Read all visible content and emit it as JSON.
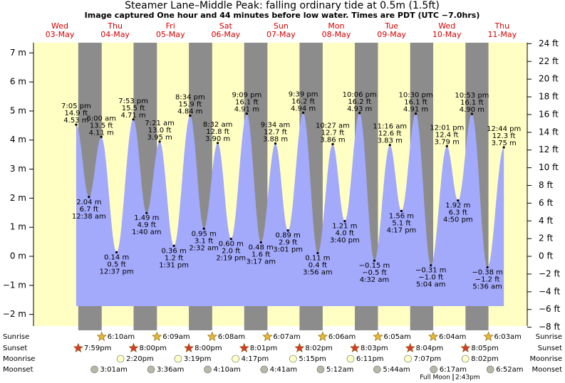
{
  "chart_data": {
    "type": "tide",
    "title": "Steamer Lane–Middle Peak: falling  ordinary tide at 0.5m (1.5ft)",
    "subtitle": "Image captured One hour and 44 minutes before low water. Times are PDT (UTC −7.0hrs)",
    "ylim": [
      -2.4,
      7.35
    ],
    "yticks": [
      {
        "value": -2,
        "label": "−2 m"
      },
      {
        "value": -1,
        "label": "−1 m"
      },
      {
        "value": 0,
        "label": "0 m"
      },
      {
        "value": 1,
        "label": "1 m"
      },
      {
        "value": 2,
        "label": "2 m"
      },
      {
        "value": 3,
        "label": "3 m"
      },
      {
        "value": 4,
        "label": "4 m"
      },
      {
        "value": 5,
        "label": "5 m"
      },
      {
        "value": 6,
        "label": "6 m"
      },
      {
        "value": 7,
        "label": "7 m"
      }
    ],
    "y2lim": [
      -7.87,
      24.11
    ],
    "y2ticks": [
      {
        "value": -8,
        "label": "−8 ft"
      },
      {
        "value": -6,
        "label": "−6 ft"
      },
      {
        "value": -4,
        "label": "−4 ft"
      },
      {
        "value": -2,
        "label": "−2 ft"
      },
      {
        "value": 0,
        "label": "0 ft"
      },
      {
        "value": 2,
        "label": "2 ft"
      },
      {
        "value": 4,
        "label": "4 ft"
      },
      {
        "value": 6,
        "label": "6 ft"
      },
      {
        "value": 8,
        "label": "8 ft"
      },
      {
        "value": 10,
        "label": "10 ft"
      },
      {
        "value": 12,
        "label": "12 ft"
      },
      {
        "value": 14,
        "label": "14 ft"
      },
      {
        "value": 16,
        "label": "16 ft"
      },
      {
        "value": 18,
        "label": "18 ft"
      },
      {
        "value": 20,
        "label": "20 ft"
      },
      {
        "value": 22,
        "label": "22 ft"
      },
      {
        "value": 24,
        "label": "24 ft"
      }
    ],
    "rows": {
      "sunrise": "Sunrise",
      "sunset": "Sunset",
      "moonrise": "Moonrise",
      "moonset": "Moonset"
    },
    "days": [
      {
        "name": "Wed",
        "date": "03-May",
        "sunrise": null,
        "sunset": "7:59pm",
        "moonrise": null,
        "moonset": null,
        "tides": [
          {
            "time": "7:05 pm",
            "m": 4.53,
            "m_label": "4.53 m",
            "ft_label": "14.9 ft"
          }
        ]
      },
      {
        "name": "Thu",
        "date": "04-May",
        "sunrise": "6:10am",
        "sunset": "8:00pm",
        "moonrise": "2:20pm",
        "moonset": "3:01am",
        "tides": [
          {
            "time": "12:38 am",
            "m": 2.04,
            "m_label": "2.04 m",
            "ft_label": "6.7 ft"
          },
          {
            "time": "6:00 am",
            "m": 4.11,
            "m_label": "4.11 m",
            "ft_label": "13.5 ft"
          },
          {
            "time": "12:37 pm",
            "m": 0.14,
            "m_label": "0.14 m",
            "ft_label": "0.5 ft"
          },
          {
            "time": "7:53 pm",
            "m": 4.71,
            "m_label": "4.71 m",
            "ft_label": "15.5 ft"
          }
        ]
      },
      {
        "name": "Fri",
        "date": "05-May",
        "sunrise": "6:09am",
        "sunset": "8:00pm",
        "moonrise": "3:19pm",
        "moonset": "3:36am",
        "tides": [
          {
            "time": "1:40 am",
            "m": 1.49,
            "m_label": "1.49 m",
            "ft_label": "4.9 ft"
          },
          {
            "time": "7:21 am",
            "m": 3.95,
            "m_label": "3.95 m",
            "ft_label": "13.0 ft"
          },
          {
            "time": "1:31 pm",
            "m": 0.36,
            "m_label": "0.36 m",
            "ft_label": "1.2 ft"
          },
          {
            "time": "8:34 pm",
            "m": 4.84,
            "m_label": "4.84 m",
            "ft_label": "15.9 ft"
          }
        ]
      },
      {
        "name": "Sat",
        "date": "06-May",
        "sunrise": "6:08am",
        "sunset": "8:01pm",
        "moonrise": "4:17pm",
        "moonset": "4:10am",
        "tides": [
          {
            "time": "2:32 am",
            "m": 0.95,
            "m_label": "0.95 m",
            "ft_label": "3.1 ft"
          },
          {
            "time": "8:32 am",
            "m": 3.9,
            "m_label": "3.90 m",
            "ft_label": "12.8 ft"
          },
          {
            "time": "2:19 pm",
            "m": 0.6,
            "m_label": "0.60 m",
            "ft_label": "2.0 ft"
          },
          {
            "time": "9:09 pm",
            "m": 4.91,
            "m_label": "4.91 m",
            "ft_label": "16.1 ft"
          }
        ]
      },
      {
        "name": "Sun",
        "date": "07-May",
        "sunrise": "6:07am",
        "sunset": "8:02pm",
        "moonrise": "5:15pm",
        "moonset": "4:41am",
        "tides": [
          {
            "time": "3:17 am",
            "m": 0.48,
            "m_label": "0.48 m",
            "ft_label": "1.6 ft"
          },
          {
            "time": "9:34 am",
            "m": 3.88,
            "m_label": "3.88 m",
            "ft_label": "12.7 ft"
          },
          {
            "time": "3:01 pm",
            "m": 0.89,
            "m_label": "0.89 m",
            "ft_label": "2.9 ft"
          },
          {
            "time": "9:39 pm",
            "m": 4.94,
            "m_label": "4.94 m",
            "ft_label": "16.2 ft"
          }
        ]
      },
      {
        "name": "Mon",
        "date": "08-May",
        "sunrise": "6:06am",
        "sunset": "8:03pm",
        "moonrise": "6:11pm",
        "moonset": "5:12am",
        "tides": [
          {
            "time": "3:56 am",
            "m": 0.11,
            "m_label": "0.11 m",
            "ft_label": "0.4 ft"
          },
          {
            "time": "10:27 am",
            "m": 3.86,
            "m_label": "3.86 m",
            "ft_label": "12.7 ft"
          },
          {
            "time": "3:40 pm",
            "m": 1.21,
            "m_label": "1.21 m",
            "ft_label": "4.0 ft"
          },
          {
            "time": "10:06 pm",
            "m": 4.93,
            "m_label": "4.93 m",
            "ft_label": "16.2 ft"
          }
        ]
      },
      {
        "name": "Tue",
        "date": "09-May",
        "sunrise": "6:05am",
        "sunset": "8:04pm",
        "moonrise": "7:07pm",
        "moonset": "5:44am",
        "tides": [
          {
            "time": "4:32 am",
            "m": -0.15,
            "m_label": "−0.15 m",
            "ft_label": "−0.5 ft"
          },
          {
            "time": "11:16 am",
            "m": 3.83,
            "m_label": "3.83 m",
            "ft_label": "12.6 ft"
          },
          {
            "time": "4:17 pm",
            "m": 1.56,
            "m_label": "1.56 m",
            "ft_label": "5.1 ft"
          },
          {
            "time": "10:30 pm",
            "m": 4.91,
            "m_label": "4.91 m",
            "ft_label": "16.1 ft"
          }
        ]
      },
      {
        "name": "Wed",
        "date": "10-May",
        "sunrise": "6:04am",
        "sunset": "8:05pm",
        "moonrise": "8:02pm",
        "moonset": "6:17am",
        "full_moon": {
          "label": "Full Moon",
          "time": "2:43pm"
        },
        "tides": [
          {
            "time": "5:04 am",
            "m": -0.31,
            "m_label": "−0.31 m",
            "ft_label": "−1.0 ft"
          },
          {
            "time": "12:01 pm",
            "m": 3.79,
            "m_label": "3.79 m",
            "ft_label": "12.4 ft"
          },
          {
            "time": "4:50 pm",
            "m": 1.92,
            "m_label": "1.92 m",
            "ft_label": "6.3 ft"
          },
          {
            "time": "10:53 pm",
            "m": 4.9,
            "m_label": "4.90 m",
            "ft_label": "16.1 ft"
          }
        ]
      },
      {
        "name": "Thu",
        "date": "11-May",
        "sunrise": "6:03am",
        "sunset": null,
        "moonrise": null,
        "moonset": "6:52am",
        "tides": [
          {
            "time": "5:36 am",
            "m": -0.38,
            "m_label": "−0.38 m",
            "ft_label": "−1.2 ft"
          },
          {
            "time": "12:44 pm",
            "m": 3.75,
            "m_label": "3.75 m",
            "ft_label": "12.3 ft"
          }
        ]
      }
    ]
  }
}
